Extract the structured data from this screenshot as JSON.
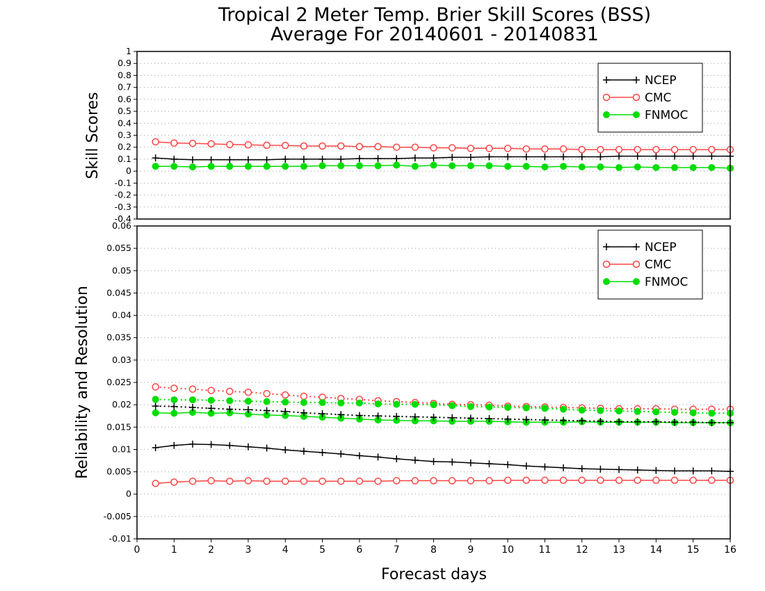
{
  "chart_data": [
    {
      "type": "line",
      "title": "Tropical 2 Meter Temp. Brier Skill Scores (BSS)",
      "subtitle": "Average For 20140601 - 20140831",
      "ylabel": "Skill Scores",
      "xlabel": "",
      "ylim": [
        -0.4,
        1
      ],
      "yticks": [
        "-0.4",
        "-0.3",
        "-0.2",
        "-0.1",
        "0",
        "0.1",
        "0.2",
        "0.3",
        "0.4",
        "0.5",
        "0.6",
        "0.7",
        "0.8",
        "0.9",
        "1"
      ],
      "xlim": [
        0,
        16
      ],
      "grid": true,
      "legend_position": "top-right",
      "x": [
        0.5,
        1,
        1.5,
        2,
        2.5,
        3,
        3.5,
        4,
        4.5,
        5,
        5.5,
        6,
        6.5,
        7,
        7.5,
        8,
        8.5,
        9,
        9.5,
        10,
        10.5,
        11,
        11.5,
        12,
        12.5,
        13,
        13.5,
        14,
        14.5,
        15,
        15.5,
        16
      ],
      "series": [
        {
          "name": "NCEP",
          "color": "#000000",
          "marker": "plus",
          "style": "solid",
          "values": [
            0.11,
            0.1,
            0.095,
            0.095,
            0.095,
            0.095,
            0.095,
            0.1,
            0.1,
            0.1,
            0.1,
            0.105,
            0.105,
            0.105,
            0.11,
            0.11,
            0.115,
            0.115,
            0.12,
            0.12,
            0.12,
            0.12,
            0.12,
            0.12,
            0.12,
            0.125,
            0.125,
            0.125,
            0.125,
            0.125,
            0.125,
            0.125
          ]
        },
        {
          "name": "CMC",
          "color": "#ff4444",
          "marker": "open-circle",
          "style": "solid",
          "values": [
            0.245,
            0.235,
            0.232,
            0.228,
            0.222,
            0.22,
            0.216,
            0.215,
            0.21,
            0.21,
            0.21,
            0.205,
            0.205,
            0.2,
            0.2,
            0.195,
            0.195,
            0.19,
            0.19,
            0.19,
            0.185,
            0.185,
            0.185,
            0.18,
            0.18,
            0.18,
            0.18,
            0.18,
            0.18,
            0.18,
            0.18,
            0.18
          ]
        },
        {
          "name": "FNMOC",
          "color": "#00dd00",
          "marker": "filled-circle",
          "style": "solid",
          "values": [
            0.04,
            0.04,
            0.035,
            0.04,
            0.04,
            0.04,
            0.04,
            0.04,
            0.04,
            0.045,
            0.045,
            0.045,
            0.045,
            0.05,
            0.04,
            0.05,
            0.045,
            0.045,
            0.045,
            0.04,
            0.04,
            0.035,
            0.04,
            0.035,
            0.035,
            0.03,
            0.035,
            0.03,
            0.03,
            0.03,
            0.03,
            0.025
          ]
        }
      ]
    },
    {
      "type": "line",
      "ylabel": "Reliability and Resolution",
      "xlabel": "Forecast days",
      "ylim": [
        -0.01,
        0.06
      ],
      "yticks": [
        "-0.01",
        "-0.005",
        "0",
        "0.005",
        "0.01",
        "0.015",
        "0.02",
        "0.025",
        "0.03",
        "0.035",
        "0.04",
        "0.045",
        "0.05",
        "0.055",
        "0.06"
      ],
      "xlim": [
        0,
        16
      ],
      "xticks": [
        "0",
        "1",
        "2",
        "3",
        "4",
        "5",
        "6",
        "7",
        "8",
        "9",
        "10",
        "11",
        "12",
        "13",
        "14",
        "15",
        "16"
      ],
      "grid": true,
      "legend_position": "top-right",
      "x": [
        0.5,
        1,
        1.5,
        2,
        2.5,
        3,
        3.5,
        4,
        4.5,
        5,
        5.5,
        6,
        6.5,
        7,
        7.5,
        8,
        8.5,
        9,
        9.5,
        10,
        10.5,
        11,
        11.5,
        12,
        12.5,
        13,
        13.5,
        14,
        14.5,
        15,
        15.5,
        16
      ],
      "series": [
        {
          "name": "NCEP",
          "color": "#000000",
          "marker": "plus",
          "style": "solid",
          "values": [
            0.0104,
            0.0109,
            0.0112,
            0.0111,
            0.0109,
            0.0106,
            0.0103,
            0.0099,
            0.0096,
            0.0093,
            0.009,
            0.0086,
            0.0083,
            0.0079,
            0.0076,
            0.0073,
            0.0072,
            0.007,
            0.0068,
            0.0066,
            0.0063,
            0.0061,
            0.0059,
            0.0057,
            0.0056,
            0.0055,
            0.0054,
            0.0053,
            0.0052,
            0.0052,
            0.0052,
            0.0051
          ]
        },
        {
          "name": "CMC",
          "color": "#ff4444",
          "marker": "open-circle",
          "style": "solid",
          "values": [
            0.0024,
            0.0027,
            0.0029,
            0.003,
            0.0029,
            0.003,
            0.0029,
            0.0029,
            0.0029,
            0.0029,
            0.0029,
            0.0029,
            0.0029,
            0.003,
            0.003,
            0.003,
            0.003,
            0.003,
            0.003,
            0.0031,
            0.0031,
            0.0031,
            0.0031,
            0.0031,
            0.0031,
            0.0031,
            0.0031,
            0.0031,
            0.0031,
            0.0031,
            0.0031,
            0.0031
          ]
        },
        {
          "name": "FNMOC",
          "color": "#00dd00",
          "marker": "filled-circle",
          "style": "solid",
          "values": [
            0.0182,
            0.0181,
            0.0183,
            0.0181,
            0.0182,
            0.0179,
            0.0177,
            0.0176,
            0.0174,
            0.0172,
            0.017,
            0.0168,
            0.0166,
            0.0165,
            0.0164,
            0.0164,
            0.0163,
            0.0163,
            0.0163,
            0.0162,
            0.0161,
            0.0161,
            0.0161,
            0.0162,
            0.0161,
            0.0161,
            0.0161,
            0.0161,
            0.016,
            0.016,
            0.016,
            0.016
          ]
        },
        {
          "name": "",
          "color": "#000000",
          "marker": "plus",
          "style": "dotted",
          "values": [
            0.0197,
            0.0196,
            0.0194,
            0.0192,
            0.019,
            0.0189,
            0.0187,
            0.0185,
            0.0182,
            0.018,
            0.0178,
            0.0176,
            0.0175,
            0.0174,
            0.0173,
            0.0172,
            0.0171,
            0.017,
            0.0169,
            0.0168,
            0.0167,
            0.0166,
            0.0165,
            0.0164,
            0.0163,
            0.0162,
            0.0162,
            0.0162,
            0.0161,
            0.0161,
            0.016,
            0.016
          ]
        },
        {
          "name": "",
          "color": "#ff4444",
          "marker": "open-circle",
          "style": "dotted",
          "values": [
            0.024,
            0.0237,
            0.0235,
            0.0232,
            0.023,
            0.0228,
            0.0225,
            0.0222,
            0.0219,
            0.0217,
            0.0214,
            0.0212,
            0.0209,
            0.0207,
            0.0205,
            0.0203,
            0.0201,
            0.02,
            0.0199,
            0.0197,
            0.0196,
            0.0195,
            0.0194,
            0.0193,
            0.0192,
            0.0191,
            0.0191,
            0.0191,
            0.019,
            0.019,
            0.019,
            0.019
          ]
        },
        {
          "name": "",
          "color": "#00dd00",
          "marker": "filled-circle",
          "style": "dotted",
          "values": [
            0.0212,
            0.0211,
            0.0211,
            0.021,
            0.0209,
            0.0208,
            0.0207,
            0.0206,
            0.0205,
            0.0205,
            0.0204,
            0.0204,
            0.0202,
            0.0201,
            0.0201,
            0.02,
            0.0198,
            0.0196,
            0.0195,
            0.0194,
            0.0193,
            0.0192,
            0.019,
            0.0188,
            0.0187,
            0.0186,
            0.0185,
            0.0184,
            0.0183,
            0.0182,
            0.0181,
            0.0181
          ]
        }
      ]
    }
  ]
}
